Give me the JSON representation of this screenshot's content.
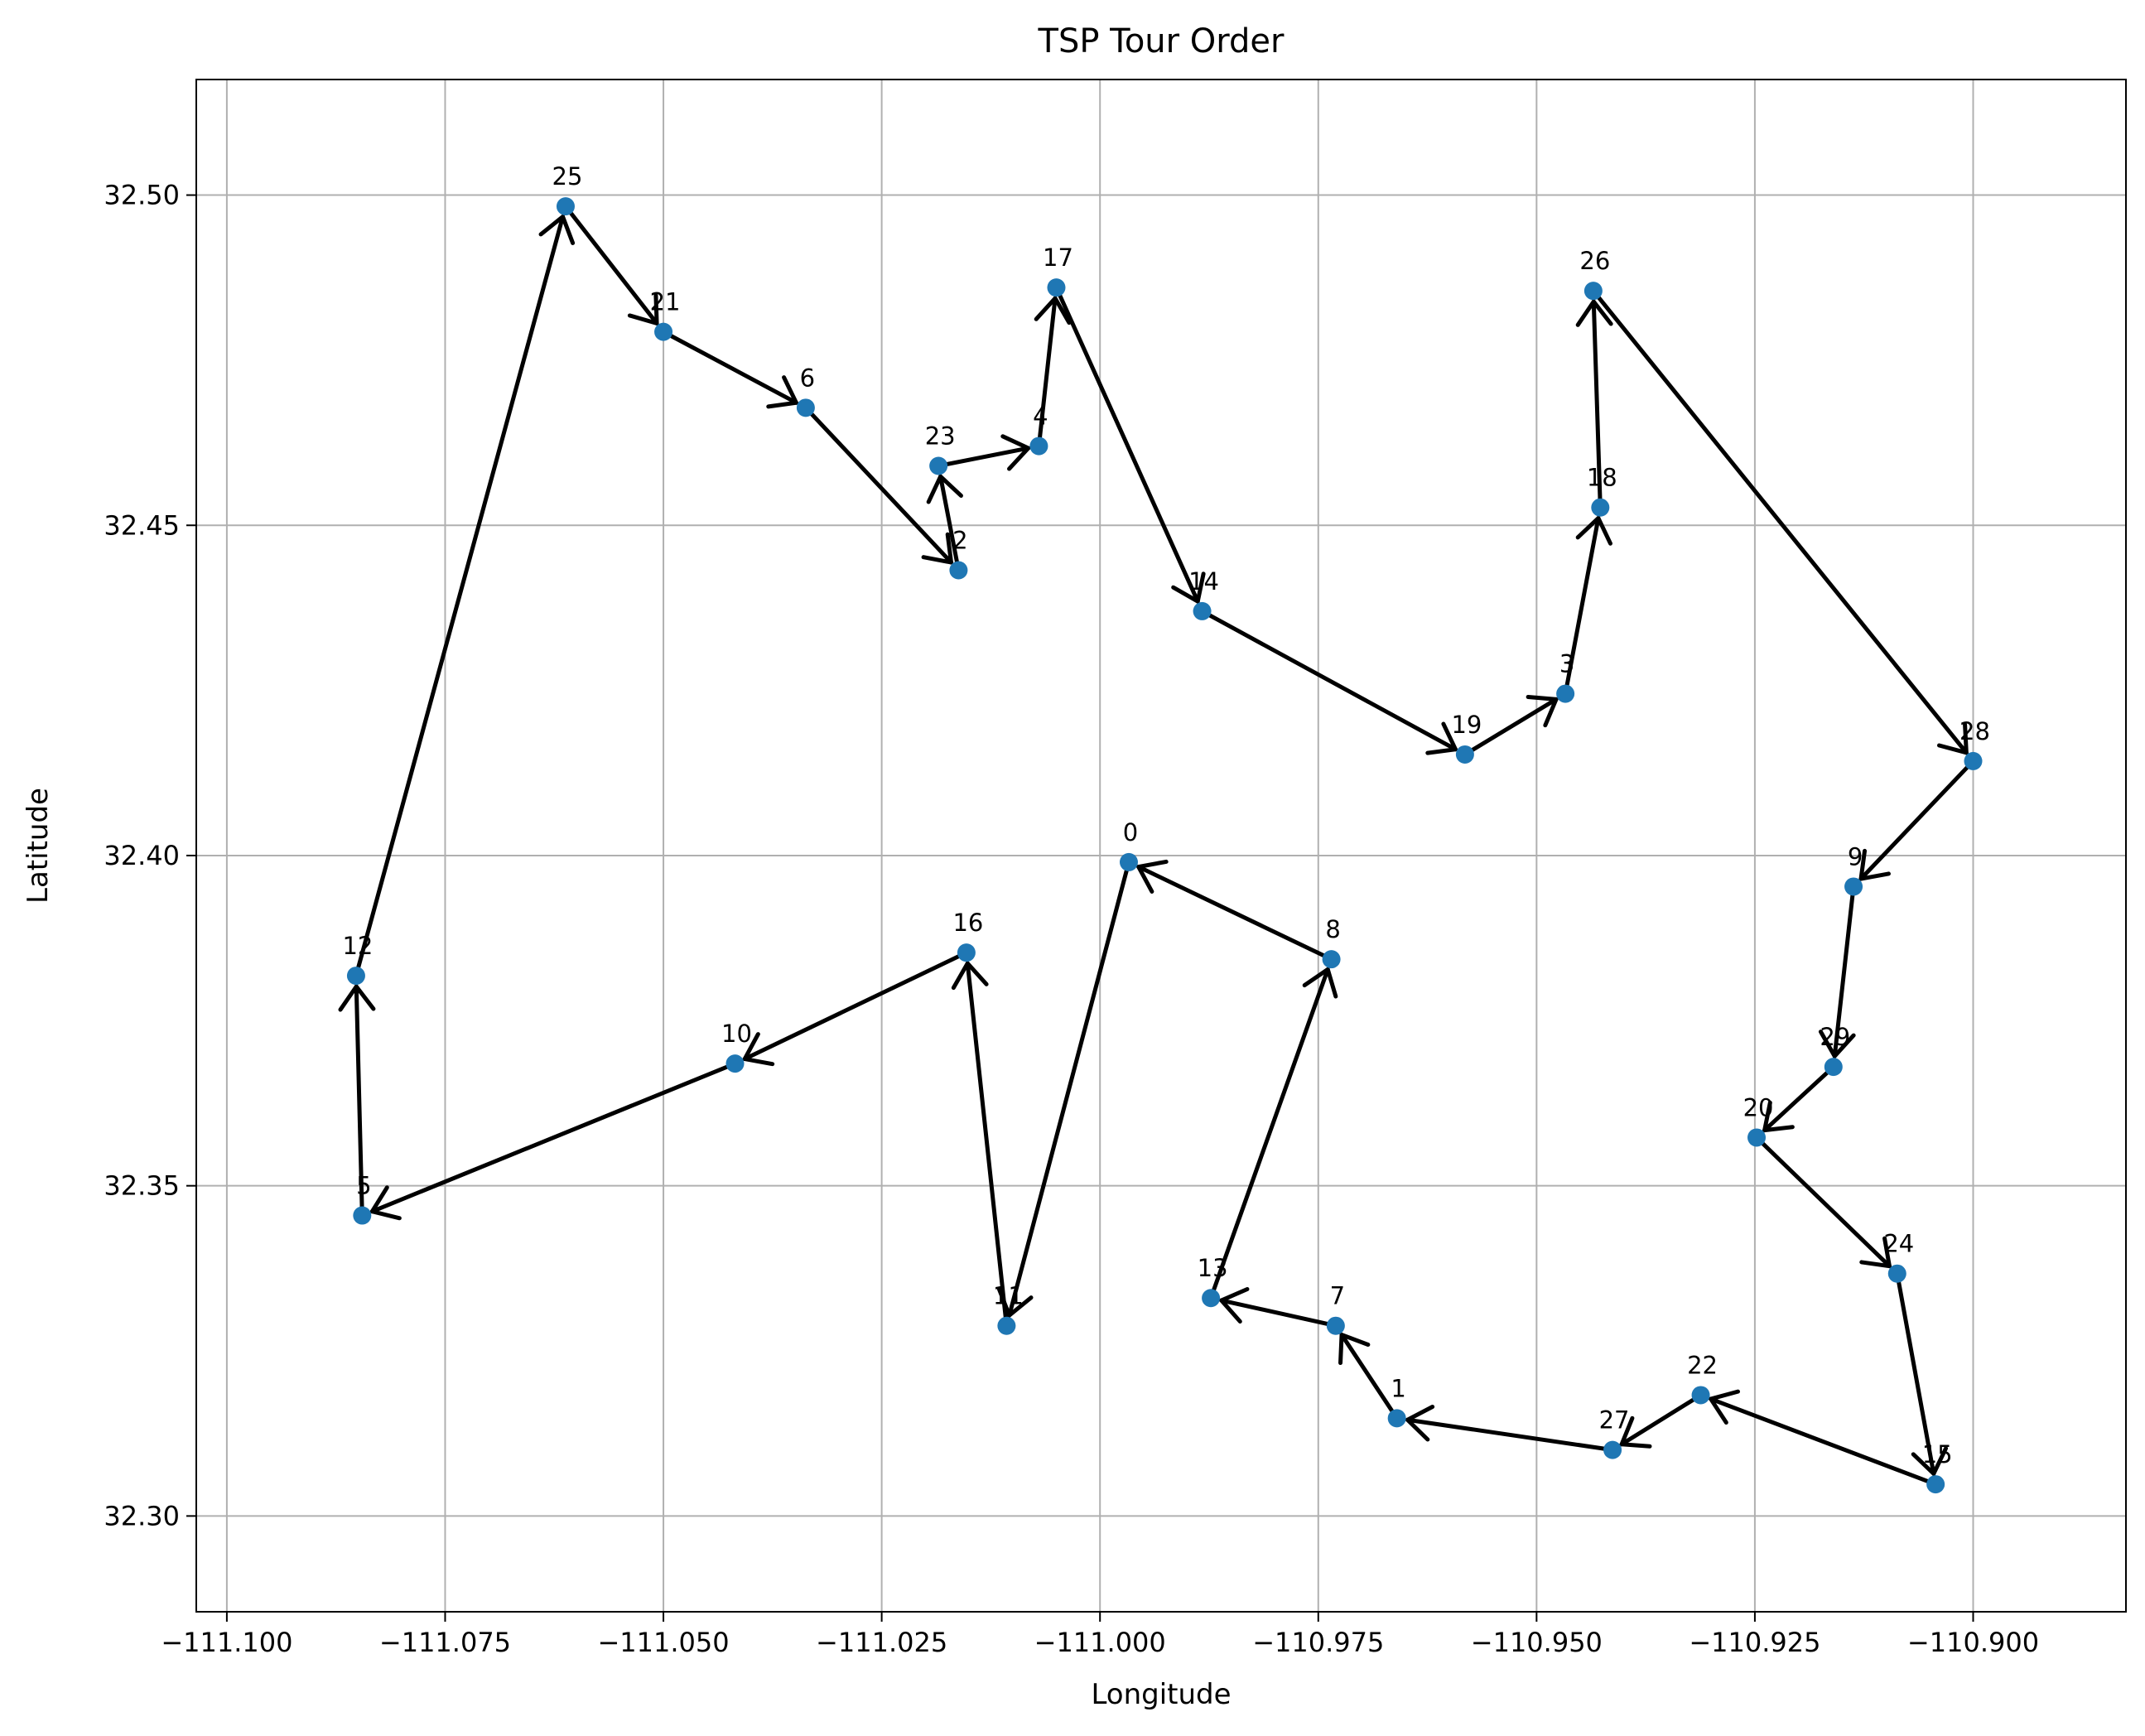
{
  "chart_data": {
    "type": "scatter",
    "title": "TSP Tour Order",
    "xlabel": "Longitude",
    "ylabel": "Latitude",
    "xlim": [
      -111.1035,
      -110.8825
    ],
    "ylim": [
      32.2855,
      32.5175
    ],
    "xticks": [
      -111.1,
      -111.075,
      -111.05,
      -111.025,
      -111.0,
      -110.975,
      -110.95,
      -110.925,
      -110.9
    ],
    "xtick_labels": [
      "−111.100",
      "−111.075",
      "−111.050",
      "−111.025",
      "−111.000",
      "−110.975",
      "−110.950",
      "−110.925",
      "−110.900"
    ],
    "yticks": [
      32.3,
      32.35,
      32.4,
      32.45,
      32.5
    ],
    "ytick_labels": [
      "32.30",
      "32.35",
      "32.40",
      "32.45",
      "32.50"
    ],
    "grid": true,
    "marker_color": "#1f77b4",
    "arrow_color": "#000000",
    "points": [
      {
        "label": "0",
        "x": -110.9967,
        "y": 32.399
      },
      {
        "label": "1",
        "x": -110.966,
        "y": 32.3148
      },
      {
        "label": "2",
        "x": -111.0162,
        "y": 32.4432
      },
      {
        "label": "3",
        "x": -110.9467,
        "y": 32.4245
      },
      {
        "label": "4",
        "x": -111.007,
        "y": 32.462
      },
      {
        "label": "5",
        "x": -111.0845,
        "y": 32.3455
      },
      {
        "label": "6",
        "x": -111.0337,
        "y": 32.4678
      },
      {
        "label": "7",
        "x": -110.973,
        "y": 32.3288
      },
      {
        "label": "8",
        "x": -110.9735,
        "y": 32.3843
      },
      {
        "label": "9",
        "x": -110.9137,
        "y": 32.3953
      },
      {
        "label": "10",
        "x": -111.0418,
        "y": 32.3685
      },
      {
        "label": "11",
        "x": -111.0107,
        "y": 32.3288
      },
      {
        "label": "12",
        "x": -111.0852,
        "y": 32.3818
      },
      {
        "label": "13",
        "x": -110.9873,
        "y": 32.333
      },
      {
        "label": "14",
        "x": -110.9883,
        "y": 32.437
      },
      {
        "label": "15",
        "x": -110.9043,
        "y": 32.3048
      },
      {
        "label": "16",
        "x": -111.0153,
        "y": 32.3853
      },
      {
        "label": "17",
        "x": -111.005,
        "y": 32.486
      },
      {
        "label": "18",
        "x": -110.9427,
        "y": 32.4527
      },
      {
        "label": "19",
        "x": -110.9582,
        "y": 32.4153
      },
      {
        "label": "20",
        "x": -110.9248,
        "y": 32.3573
      },
      {
        "label": "21",
        "x": -111.05,
        "y": 32.4793
      },
      {
        "label": "22",
        "x": -110.9312,
        "y": 32.3183
      },
      {
        "label": "23",
        "x": -111.0185,
        "y": 32.459
      },
      {
        "label": "24",
        "x": -110.9087,
        "y": 32.3367
      },
      {
        "label": "25",
        "x": -111.0612,
        "y": 32.4983
      },
      {
        "label": "26",
        "x": -110.9435,
        "y": 32.4855
      },
      {
        "label": "27",
        "x": -110.9413,
        "y": 32.31
      },
      {
        "label": "28",
        "x": -110.9,
        "y": 32.4143
      },
      {
        "label": "29",
        "x": -110.916,
        "y": 32.368
      }
    ],
    "tour_order": [
      "8",
      "0",
      "11",
      "16",
      "10",
      "5",
      "12",
      "25",
      "21",
      "6",
      "2",
      "23",
      "4",
      "17",
      "14",
      "19",
      "3",
      "18",
      "26",
      "28",
      "9",
      "29",
      "20",
      "24",
      "15",
      "22",
      "27",
      "1",
      "7",
      "13",
      "8"
    ]
  }
}
